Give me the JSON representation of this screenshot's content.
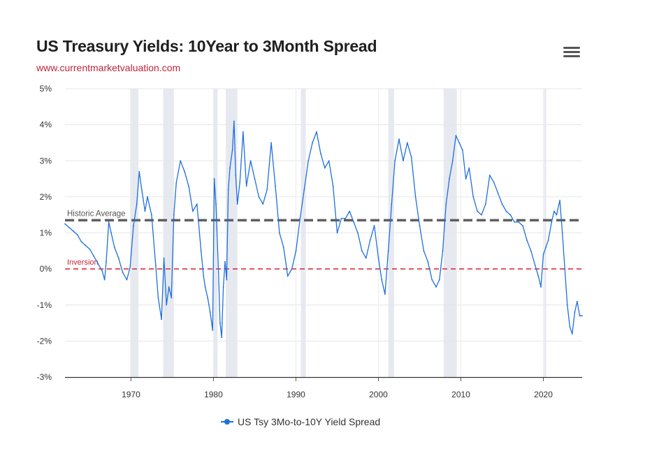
{
  "chart_data": {
    "type": "line",
    "title": "US Treasury Yields: 10Year to 3Month Spread",
    "subtitle": "www.currentmarketvaluation.com",
    "xlabel": "",
    "ylabel": "",
    "xlim": [
      1962,
      2024.7
    ],
    "ylim": [
      -3,
      5
    ],
    "y_ticks": [
      "5%",
      "4%",
      "3%",
      "2%",
      "1%",
      "0%",
      "-1%",
      "-2%",
      "-3%"
    ],
    "y_tick_values": [
      5,
      4,
      3,
      2,
      1,
      0,
      -1,
      -2,
      -3
    ],
    "x_ticks": [
      "1970",
      "1980",
      "1990",
      "2000",
      "2010",
      "2020"
    ],
    "x_tick_values": [
      1970,
      1980,
      1990,
      2000,
      2010,
      2020
    ],
    "recessions": [
      [
        1969.9,
        1970.9
      ],
      [
        1973.9,
        1975.2
      ],
      [
        1980.0,
        1980.5
      ],
      [
        1981.5,
        1982.9
      ],
      [
        1990.6,
        1991.2
      ],
      [
        2001.2,
        2001.9
      ],
      [
        2007.9,
        2009.5
      ],
      [
        2020.1,
        2020.3
      ]
    ],
    "reference_lines": [
      {
        "label": "Historic Average",
        "value": 1.35,
        "color": "#5f5f5f",
        "style": "dashed-thick"
      },
      {
        "label": "Inversion",
        "value": 0,
        "color": "#d62232",
        "style": "dashed"
      }
    ],
    "series": [
      {
        "name": "US Tsy 3Mo-to-10Y Yield Spread",
        "color": "#1f6fdc",
        "x": [
          1962.0,
          1962.5,
          1963.0,
          1963.5,
          1964.0,
          1964.5,
          1965.0,
          1965.5,
          1966.0,
          1966.5,
          1966.8,
          1967.0,
          1967.3,
          1967.6,
          1968.0,
          1968.5,
          1969.0,
          1969.5,
          1969.9,
          1970.3,
          1970.7,
          1971.0,
          1971.3,
          1971.7,
          1972.0,
          1972.5,
          1973.0,
          1973.3,
          1973.7,
          1974.0,
          1974.3,
          1974.6,
          1974.9,
          1975.2,
          1975.5,
          1976.0,
          1976.5,
          1977.0,
          1977.5,
          1978.0,
          1978.5,
          1978.8,
          1979.0,
          1979.3,
          1979.6,
          1979.9,
          1980.1,
          1980.3,
          1980.6,
          1980.8,
          1981.0,
          1981.2,
          1981.4,
          1981.6,
          1981.8,
          1982.0,
          1982.3,
          1982.5,
          1982.7,
          1982.9,
          1983.2,
          1983.6,
          1984.0,
          1984.5,
          1985.0,
          1985.5,
          1986.0,
          1986.5,
          1987.0,
          1987.5,
          1988.0,
          1988.5,
          1989.0,
          1989.5,
          1990.0,
          1990.5,
          1991.0,
          1991.5,
          1992.0,
          1992.5,
          1993.0,
          1993.5,
          1994.0,
          1994.5,
          1995.0,
          1995.5,
          1996.0,
          1996.5,
          1997.0,
          1997.5,
          1998.0,
          1998.5,
          1999.0,
          1999.5,
          2000.0,
          2000.4,
          2000.8,
          2001.2,
          2001.6,
          2002.0,
          2002.5,
          2003.0,
          2003.5,
          2004.0,
          2004.5,
          2005.0,
          2005.5,
          2006.0,
          2006.5,
          2007.0,
          2007.4,
          2007.8,
          2008.2,
          2008.6,
          2009.0,
          2009.4,
          2009.8,
          2010.2,
          2010.6,
          2011.0,
          2011.5,
          2012.0,
          2012.5,
          2013.0,
          2013.5,
          2014.0,
          2014.5,
          2015.0,
          2015.5,
          2016.0,
          2016.5,
          2017.0,
          2017.5,
          2018.0,
          2018.5,
          2019.0,
          2019.4,
          2019.7,
          2020.0,
          2020.3,
          2020.6,
          2021.0,
          2021.3,
          2021.6,
          2022.0,
          2022.3,
          2022.6,
          2022.9,
          2023.2,
          2023.5,
          2023.8,
          2024.1,
          2024.4,
          2024.7
        ],
        "values": [
          1.25,
          1.15,
          1.05,
          0.95,
          0.75,
          0.65,
          0.55,
          0.35,
          0.15,
          -0.05,
          -0.3,
          0.2,
          1.3,
          1.0,
          0.6,
          0.3,
          -0.1,
          -0.3,
          0.05,
          1.2,
          1.8,
          2.7,
          2.2,
          1.6,
          2.0,
          1.5,
          0.1,
          -0.8,
          -1.4,
          0.3,
          -1.0,
          -0.5,
          -0.8,
          1.5,
          2.4,
          3.0,
          2.7,
          2.3,
          1.6,
          1.8,
          0.5,
          -0.2,
          -0.5,
          -0.8,
          -1.2,
          -1.7,
          2.5,
          1.8,
          0.0,
          -1.5,
          -1.9,
          -0.5,
          0.2,
          -0.3,
          2.2,
          2.8,
          3.3,
          4.1,
          2.6,
          1.8,
          2.4,
          3.8,
          2.3,
          3.0,
          2.5,
          2.0,
          1.8,
          2.2,
          3.5,
          2.3,
          1.0,
          0.6,
          -0.2,
          0.0,
          0.5,
          1.4,
          2.2,
          3.0,
          3.5,
          3.8,
          3.2,
          2.8,
          3.0,
          2.3,
          1.0,
          1.4,
          1.4,
          1.6,
          1.3,
          1.0,
          0.5,
          0.3,
          0.8,
          1.2,
          0.3,
          -0.3,
          -0.7,
          0.5,
          1.8,
          3.0,
          3.6,
          3.0,
          3.5,
          3.1,
          2.0,
          1.2,
          0.5,
          0.2,
          -0.3,
          -0.5,
          -0.3,
          0.5,
          1.8,
          2.5,
          3.0,
          3.7,
          3.5,
          3.3,
          2.5,
          2.8,
          2.0,
          1.6,
          1.5,
          1.8,
          2.6,
          2.4,
          2.1,
          1.8,
          1.6,
          1.5,
          1.3,
          1.3,
          1.2,
          0.8,
          0.5,
          0.1,
          -0.2,
          -0.5,
          0.4,
          0.6,
          0.8,
          1.3,
          1.6,
          1.5,
          1.9,
          1.0,
          0.0,
          -1.0,
          -1.6,
          -1.8,
          -1.2,
          -0.9,
          -1.3,
          -1.3
        ]
      }
    ]
  },
  "legend": {
    "label": "US Tsy 3Mo-to-10Y Yield Spread"
  },
  "menu": {
    "icon": "hamburger-menu-icon"
  },
  "ref_labels": {
    "average": "Historic Average",
    "inversion": "Inversion"
  }
}
